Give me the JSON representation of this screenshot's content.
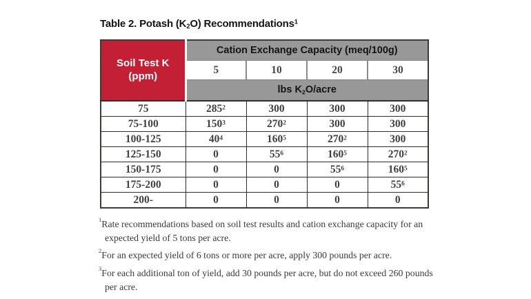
{
  "title": {
    "prefix": "Table 2. Potash (K",
    "k_sub": "2",
    "mid": "O) Recommendations",
    "footnote_sup": "1"
  },
  "table": {
    "corner": {
      "line1": "Soil Test K",
      "line2": "(ppm)"
    },
    "cec_header": "Cation Exchange Capacity (meq/100g)",
    "cec_values": [
      "5",
      "10",
      "20",
      "30"
    ],
    "units": {
      "prefix": "lbs K",
      "sub": "2",
      "suffix": "O/acre"
    },
    "rows": [
      {
        "label": "75",
        "cells": [
          {
            "v": "285",
            "sup": "2"
          },
          {
            "v": "300"
          },
          {
            "v": "300"
          },
          {
            "v": "300"
          }
        ]
      },
      {
        "label": "75-100",
        "cells": [
          {
            "v": "150",
            "sup": "3"
          },
          {
            "v": "270",
            "sup": "2"
          },
          {
            "v": "300"
          },
          {
            "v": "300"
          }
        ]
      },
      {
        "label": "100-125",
        "cells": [
          {
            "v": "40",
            "sup": "4"
          },
          {
            "v": "160",
            "sup": "5"
          },
          {
            "v": "270",
            "sup": "2"
          },
          {
            "v": "300"
          }
        ]
      },
      {
        "label": "125-150",
        "cells": [
          {
            "v": "0"
          },
          {
            "v": "55",
            "sup": "6"
          },
          {
            "v": "160",
            "sup": "5"
          },
          {
            "v": "270",
            "sup": "2"
          }
        ]
      },
      {
        "label": "150-175",
        "cells": [
          {
            "v": "0"
          },
          {
            "v": "0"
          },
          {
            "v": "55",
            "sup": "6"
          },
          {
            "v": "160",
            "sup": "5"
          }
        ]
      },
      {
        "label": "175-200",
        "cells": [
          {
            "v": "0"
          },
          {
            "v": "0"
          },
          {
            "v": "0"
          },
          {
            "v": "55",
            "sup": "6"
          }
        ]
      },
      {
        "label": "200-",
        "cells": [
          {
            "v": "0"
          },
          {
            "v": "0"
          },
          {
            "v": "0"
          },
          {
            "v": "0"
          }
        ]
      }
    ]
  },
  "footnotes": [
    {
      "sup": "1",
      "text": "Rate recommendations based on soil test results and cation exchange capacity for an expected yield of 5 tons per acre."
    },
    {
      "sup": "2",
      "text": "For an expected yield of 6 tons or more per acre, apply 300 pounds per acre."
    },
    {
      "sup": "3",
      "text": "For each additional ton of yield, add 30 pounds per acre, but do not exceed 260 pounds per acre."
    }
  ],
  "colors": {
    "header_red": "#c32036",
    "header_gray": "#999899",
    "data_text": "#3e3f44",
    "border_dark": "#2e2d29"
  }
}
